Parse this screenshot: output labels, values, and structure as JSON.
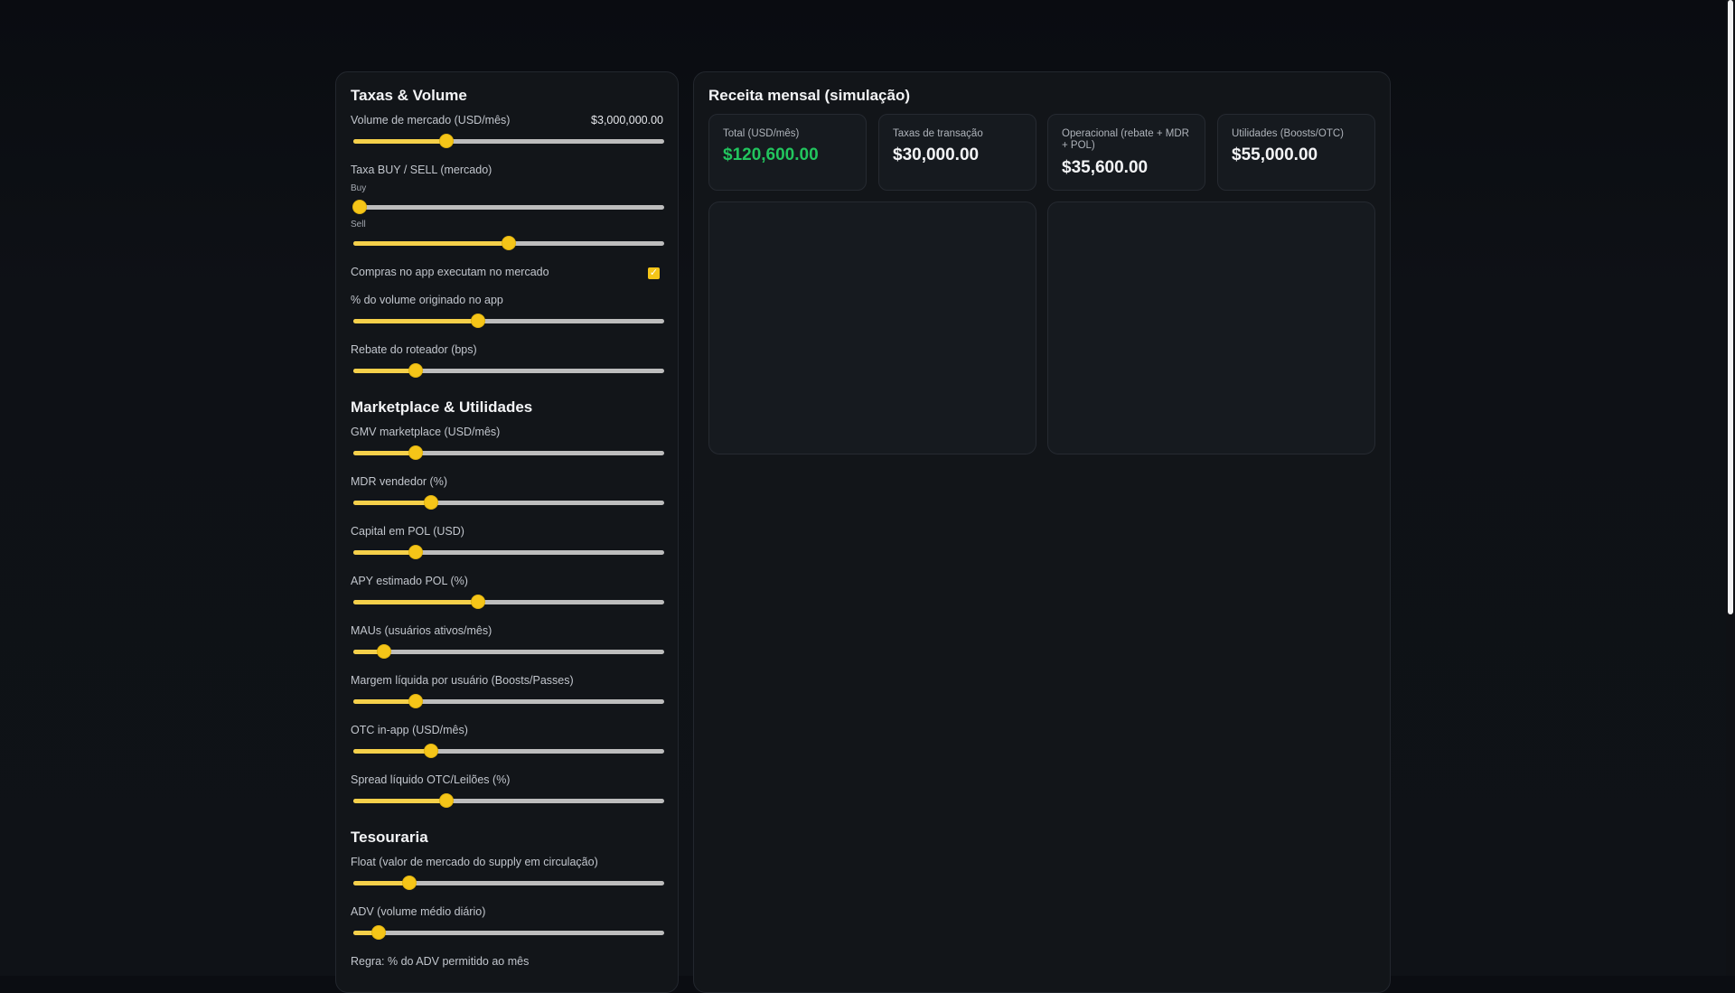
{
  "controls": {
    "taxas_volume": {
      "title": "Taxas & Volume",
      "market_volume": {
        "label": "Volume de mercado (USD/mês)",
        "value_text": "$3,000,000.00",
        "level": 0.3
      },
      "fee_buy_sell": {
        "label": "Taxa BUY / SELL (mercado)",
        "buy_label": "Buy",
        "buy_level": 0.02,
        "sell_label": "Sell",
        "sell_level": 0.5
      },
      "app_purchases": {
        "label": "Compras no app executam no mercado",
        "checked": true,
        "check_glyph": "✓"
      },
      "app_volume_pct": {
        "label": "% do volume originado no app",
        "level": 0.4
      },
      "router_rebate": {
        "label": "Rebate do roteador (bps)",
        "level": 0.2
      }
    },
    "marketplace": {
      "title": "Marketplace & Utilidades",
      "gmv": {
        "label": "GMV marketplace (USD/mês)",
        "level": 0.2
      },
      "mdr": {
        "label": "MDR vendedor (%)",
        "level": 0.25
      },
      "pol_capital": {
        "label": "Capital em POL (USD)",
        "level": 0.2
      },
      "pol_apy": {
        "label": "APY estimado POL (%)",
        "level": 0.4
      },
      "maus": {
        "label": "MAUs (usuários ativos/mês)",
        "level": 0.1
      },
      "net_margin": {
        "label": "Margem líquida por usuário (Boosts/Passes)",
        "level": 0.2
      },
      "otc": {
        "label": "OTC in-app (USD/mês)",
        "level": 0.25
      },
      "spread": {
        "label": "Spread líquido OTC/Leilões (%)",
        "level": 0.3
      }
    },
    "tesouraria": {
      "title": "Tesouraria",
      "float": {
        "label": "Float (valor de mercado do supply em circulação)",
        "level": 0.18
      },
      "adv": {
        "label": "ADV (volume médio diário)",
        "level": 0.08
      },
      "adv_rule": {
        "label": "Regra: % do ADV permitido ao mês"
      }
    }
  },
  "revenue": {
    "title": "Receita mensal (simulação)",
    "kpis": [
      {
        "label": "Total (USD/mês)",
        "value": "$120,600.00"
      },
      {
        "label": "Taxas de transação",
        "value": "$30,000.00"
      },
      {
        "label": "Operacional (rebate + MDR + POL)",
        "value": "$35,600.00"
      },
      {
        "label": "Utilidades (Boosts/OTC)",
        "value": "$55,000.00"
      }
    ]
  },
  "colors": {
    "accent": "#f5c518",
    "positive": "#22c55e",
    "panel": "#121519",
    "background": "#0b0d12"
  }
}
